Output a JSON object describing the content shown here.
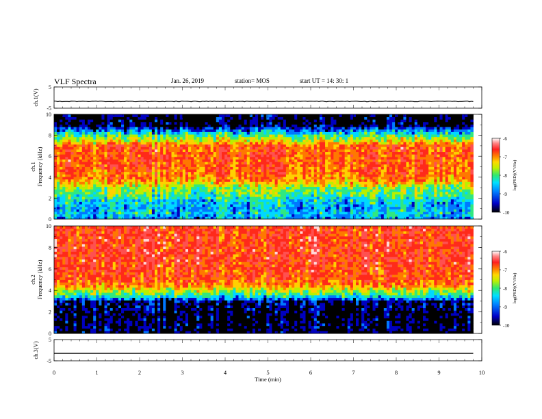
{
  "header": {
    "title": "VLF Spectra",
    "date": "Jan. 26, 2019",
    "station": "station= MOS",
    "start_ut": "start  UT =   14: 30: 1"
  },
  "colors": {
    "spectrogram": [
      "#000000",
      "#0000c0",
      "#0078ff",
      "#00d8ff",
      "#30e880",
      "#b8f000",
      "#ffd000",
      "#ff7800",
      "#ff2a1a",
      "#ff5050",
      "#ffd8d8"
    ]
  },
  "chart_data": [
    {
      "id": "ch1-voltage",
      "type": "line",
      "ylabel": "ch.1(V)",
      "ylim": [
        -5,
        5
      ],
      "y_ticks": [
        5,
        -5
      ],
      "x": [
        0,
        1,
        2,
        3,
        4,
        5,
        6,
        7,
        8,
        9,
        9.8
      ],
      "y": [
        -1.8,
        -1.8,
        -1.8,
        -1.8,
        -1.8,
        -1.8,
        -1.8,
        -1.8,
        -1.8,
        -1.8,
        -1.8
      ]
    },
    {
      "id": "ch1-spectrogram",
      "type": "heatmap",
      "ylabel": "ch.1\nFrequency  (kHz)",
      "ylim": [
        0,
        10
      ],
      "y_ticks": [
        "0",
        "2",
        "4",
        "6",
        "8",
        "10"
      ],
      "data_x_range": [
        0,
        9.8
      ],
      "frequency_levels_kHz": [
        0,
        0.5,
        1,
        1.5,
        2,
        2.5,
        3,
        3.5,
        4,
        5,
        6,
        7,
        7.5,
        8,
        8.5,
        9,
        10
      ],
      "log_psd_levels": [
        -9.2,
        -8.8,
        -9.0,
        -8.9,
        -8.6,
        -8.3,
        -8.2,
        -7.5,
        -7.2,
        -7.0,
        -7.0,
        -7.0,
        -7.8,
        -8.4,
        -9.2,
        -10.0,
        -10.0
      ],
      "colorbar": {
        "label": "log(PSD)(V²/Hz)",
        "range": [
          -10,
          -6
        ],
        "ticks": [
          "-6",
          "-7",
          "-8",
          "-9",
          "-10"
        ]
      }
    },
    {
      "id": "ch2-spectrogram",
      "type": "heatmap",
      "ylabel": "ch.2\nFrequency  (kHz)",
      "ylim": [
        0,
        10
      ],
      "y_ticks": [
        "0",
        "2",
        "4",
        "6",
        "8",
        "10"
      ],
      "data_x_range": [
        0,
        9.8
      ],
      "frequency_levels_kHz": [
        0,
        1,
        2,
        3,
        3.5,
        4,
        4.5,
        5,
        6,
        7,
        8,
        9,
        10
      ],
      "log_psd_levels": [
        -10.0,
        -10.0,
        -10.0,
        -9.8,
        -8.6,
        -8.0,
        -7.2,
        -7.0,
        -6.9,
        -6.8,
        -6.8,
        -6.8,
        -6.8
      ],
      "colorbar": {
        "label": "log(PSD)(V²/Hz)",
        "range": [
          -10,
          -6
        ],
        "ticks": [
          "-6",
          "-7",
          "-8",
          "-9",
          "-10"
        ]
      }
    },
    {
      "id": "ch3-voltage",
      "type": "line",
      "ylabel": "ch.3(V)",
      "ylim": [
        -5,
        5
      ],
      "y_ticks": [
        5,
        -5
      ],
      "x": [
        0,
        9.8
      ],
      "y": [
        -1.5,
        -1.5
      ]
    }
  ],
  "x_axis": {
    "label": "Time  (min)",
    "xlim": [
      0,
      10
    ],
    "ticks": [
      "0",
      "1",
      "2",
      "3",
      "4",
      "5",
      "6",
      "7",
      "8",
      "9",
      "10"
    ]
  }
}
